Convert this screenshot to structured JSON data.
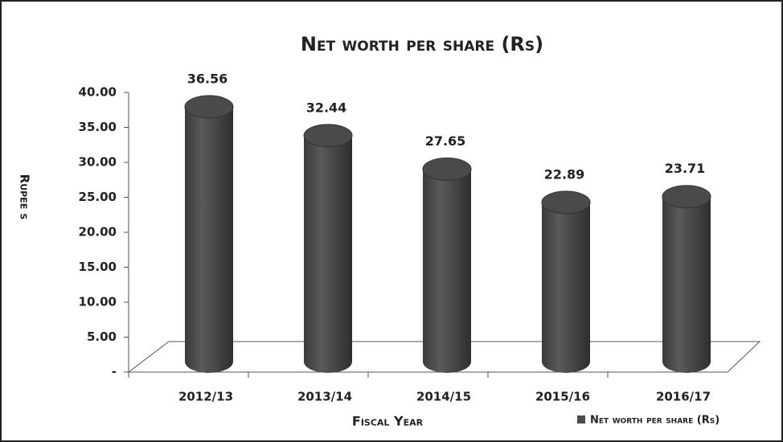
{
  "chart_data": {
    "type": "bar",
    "title": "Net worth per share (Rs)",
    "x_label": "Fiscal Year",
    "y_label": "Rupee s",
    "categories": [
      "2012/13",
      "2013/14",
      "2014/15",
      "2015/16",
      "2016/17"
    ],
    "series": [
      {
        "name": "Net worth per share (Rs)",
        "color": "#4a4a4a",
        "values": [
          36.56,
          32.44,
          27.65,
          22.89,
          23.71
        ]
      }
    ],
    "ylim": [
      0,
      40
    ],
    "yticks": [
      {
        "value": 0,
        "label": "-"
      },
      {
        "value": 5,
        "label": "5.00"
      },
      {
        "value": 10,
        "label": "10.00"
      },
      {
        "value": 15,
        "label": "15.00"
      },
      {
        "value": 20,
        "label": "20.00"
      },
      {
        "value": 25,
        "label": "25.00"
      },
      {
        "value": 30,
        "label": "30.00"
      },
      {
        "value": 35,
        "label": "35.00"
      },
      {
        "value": 40,
        "label": "40.00"
      }
    ],
    "legend": "bottom-right"
  }
}
